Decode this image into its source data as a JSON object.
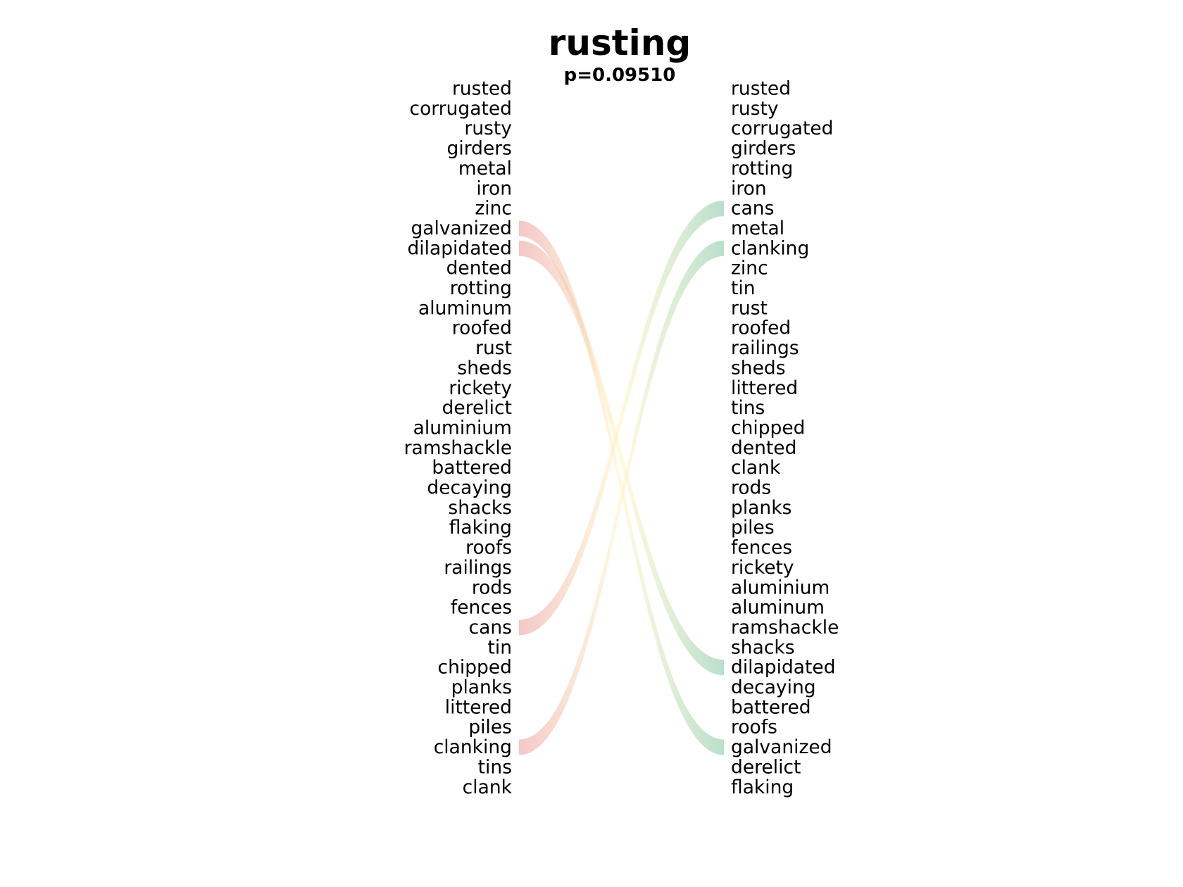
{
  "title": "rusting",
  "subtitle": "p=0.09510",
  "chart_data": {
    "type": "bump",
    "left_words": [
      "rusted",
      "corrugated",
      "rusty",
      "girders",
      "metal",
      "iron",
      "zinc",
      "galvanized",
      "dilapidated",
      "dented",
      "rotting",
      "aluminum",
      "roofed",
      "rust",
      "sheds",
      "rickety",
      "derelict",
      "aluminium",
      "ramshackle",
      "battered",
      "decaying",
      "shacks",
      "flaking",
      "roofs",
      "railings",
      "rods",
      "fences",
      "cans",
      "tin",
      "chipped",
      "planks",
      "littered",
      "piles",
      "clanking",
      "tins",
      "clank"
    ],
    "right_words": [
      "rusted",
      "rusty",
      "corrugated",
      "girders",
      "rotting",
      "iron",
      "cans",
      "metal",
      "clanking",
      "zinc",
      "tin",
      "rust",
      "roofed",
      "railings",
      "sheds",
      "littered",
      "tins",
      "chipped",
      "dented",
      "clank",
      "rods",
      "planks",
      "piles",
      "fences",
      "rickety",
      "aluminium",
      "aluminum",
      "ramshackle",
      "shacks",
      "dilapidated",
      "decaying",
      "battered",
      "roofs",
      "galvanized",
      "derelict",
      "flaking"
    ],
    "links": [
      {
        "word": "galvanized",
        "from_rank": 8,
        "to_rank": 34
      },
      {
        "word": "dilapidated",
        "from_rank": 9,
        "to_rank": 30
      },
      {
        "word": "cans",
        "from_rank": 28,
        "to_rank": 7
      },
      {
        "word": "clanking",
        "from_rank": 34,
        "to_rank": 9
      }
    ],
    "colors": {
      "left_end": "#ea9a9a",
      "mid": "#fff3b8",
      "right_end": "#7fc4a2"
    }
  }
}
